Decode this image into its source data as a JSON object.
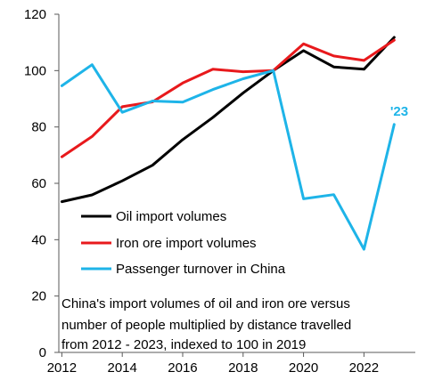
{
  "chart_data": {
    "type": "line",
    "x": [
      2012,
      2013,
      2014,
      2015,
      2016,
      2017,
      2018,
      2019,
      2020,
      2021,
      2022,
      2023
    ],
    "xticks": [
      "2012",
      "2014",
      "2016",
      "2018",
      "2020",
      "2022"
    ],
    "yticks": [
      "0",
      "20",
      "40",
      "60",
      "80",
      "100",
      "120"
    ],
    "xlim": [
      2011.9,
      2023.7
    ],
    "ylim": [
      0,
      120
    ],
    "grid": false,
    "legend_position": "left",
    "series": [
      {
        "name": "Oil import volumes",
        "color": "#000000",
        "values": [
          53.5,
          55.9,
          60.9,
          66.4,
          75.5,
          83.4,
          92.1,
          100,
          107.1,
          101.3,
          100.5,
          111.8
        ]
      },
      {
        "name": "Iron ore import volumes",
        "color": "#e8191c",
        "values": [
          69.4,
          76.6,
          87.2,
          88.9,
          95.6,
          100.5,
          99.6,
          100,
          109.5,
          105.2,
          103.6,
          110.8
        ]
      },
      {
        "name": "Passenger turnover in China",
        "color": "#1eb4e8",
        "values": [
          94.6,
          102.1,
          85.2,
          89.2,
          88.8,
          93.3,
          97.1,
          100,
          54.5,
          56.0,
          36.6,
          80.9
        ]
      }
    ],
    "annotation": {
      "text": "'23",
      "color": "#1eb4e8"
    },
    "note": [
      "China's import volumes of oil and iron ore versus",
      "number of people multiplied by distance travelled",
      "from 2012 - 2023, indexed to 100 in 2019"
    ]
  }
}
